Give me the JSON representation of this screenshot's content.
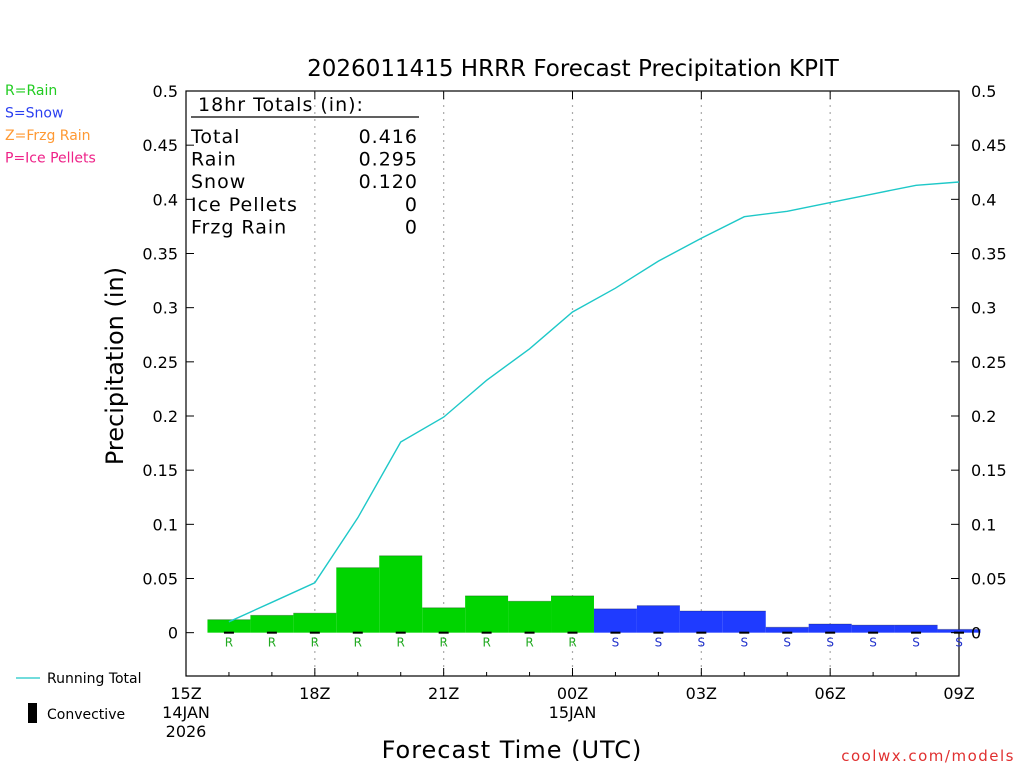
{
  "title": "2026011415 HRRR Forecast Precipitation KPIT",
  "watermark": "coolwx.com/models",
  "legend": {
    "types": [
      {
        "text": "R=Rain",
        "color": "#22cc22"
      },
      {
        "text": "S=Snow",
        "color": "#2a3ff0"
      },
      {
        "text": "Z=Frzg Rain",
        "color": "#ff9933"
      },
      {
        "text": "P=Ice Pellets",
        "color": "#ee2288"
      }
    ],
    "running_total": "Running Total",
    "convective": "Convective"
  },
  "totals": {
    "header": "18hr Totals (in):",
    "rows": [
      {
        "label": "Total",
        "value": "0.416"
      },
      {
        "label": "Rain",
        "value": "0.295"
      },
      {
        "label": "Snow",
        "value": "0.120"
      },
      {
        "label": "Ice Pellets",
        "value": "0"
      },
      {
        "label": "Frzg Rain",
        "value": "0"
      }
    ]
  },
  "chart_data": {
    "type": "bar",
    "title": "2026011415 HRRR Forecast Precipitation KPIT",
    "xlabel": "Forecast Time (UTC)",
    "ylabel": "Precipitation (in)",
    "ylim": [
      -0.04,
      0.5
    ],
    "yticks": [
      "0",
      "0.05",
      "0.1",
      "0.15",
      "0.2",
      "0.25",
      "0.3",
      "0.35",
      "0.4",
      "0.45",
      "0.5"
    ],
    "xlim_hours": [
      0,
      18
    ],
    "xticks": [
      {
        "hour": 0,
        "lines": [
          "15Z",
          "14JAN",
          "2026"
        ]
      },
      {
        "hour": 3,
        "lines": [
          "18Z"
        ]
      },
      {
        "hour": 6,
        "lines": [
          "21Z"
        ]
      },
      {
        "hour": 9,
        "lines": [
          "00Z",
          "15JAN"
        ]
      },
      {
        "hour": 12,
        "lines": [
          "03Z"
        ]
      },
      {
        "hour": 15,
        "lines": [
          "06Z"
        ]
      },
      {
        "hour": 18,
        "lines": [
          "09Z"
        ]
      }
    ],
    "grid_hours": [
      3,
      6,
      9,
      12,
      15
    ],
    "hours": [
      1,
      2,
      3,
      4,
      5,
      6,
      7,
      8,
      9,
      10,
      11,
      12,
      13,
      14,
      15,
      16,
      17,
      18
    ],
    "hourly_precip": [
      0.012,
      0.016,
      0.018,
      0.06,
      0.071,
      0.023,
      0.034,
      0.029,
      0.034,
      0.022,
      0.025,
      0.02,
      0.02,
      0.005,
      0.008,
      0.007,
      0.007,
      0.003
    ],
    "ptype": [
      "R",
      "R",
      "R",
      "R",
      "R",
      "R",
      "R",
      "R",
      "R",
      "S",
      "S",
      "S",
      "S",
      "S",
      "S",
      "S",
      "S",
      "S"
    ],
    "ptype_colors": {
      "R": "#00d400",
      "S": "#1f3bff"
    },
    "ptype_label_colors": {
      "R": "#22aa22",
      "S": "#2233cc"
    },
    "convective": [
      0,
      0,
      0,
      0,
      0,
      0,
      0,
      0,
      0,
      0,
      0,
      0,
      0,
      0,
      0,
      0,
      0,
      0
    ],
    "running_total": [
      0.01,
      0.028,
      0.046,
      0.106,
      0.176,
      0.199,
      0.233,
      0.262,
      0.296,
      0.318,
      0.343,
      0.364,
      0.384,
      0.389,
      0.397,
      0.405,
      0.413,
      0.416
    ],
    "line_color": "#1ec8c8",
    "legend_position": "left"
  }
}
